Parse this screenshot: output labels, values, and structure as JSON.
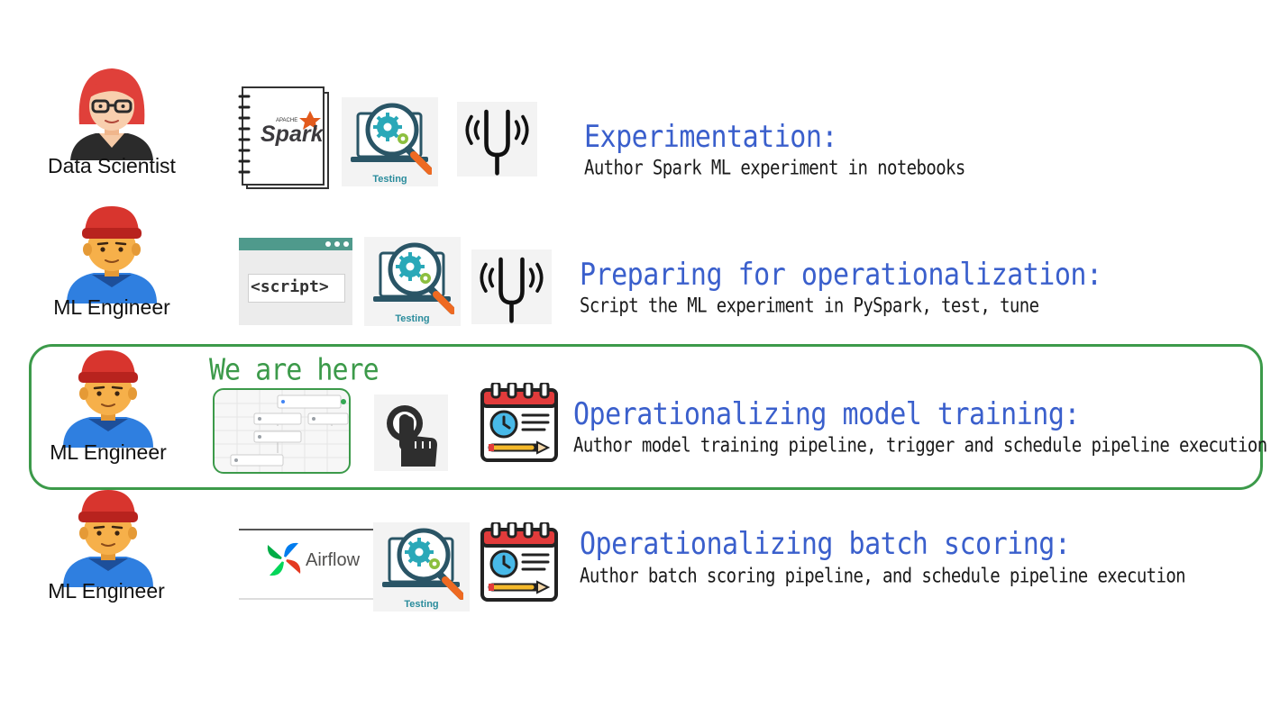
{
  "rows": [
    {
      "role": "Data Scientist",
      "title": "Experimentation:",
      "description": "Author Spark ML experiment in notebooks",
      "icons": [
        "spark-notebook-icon",
        "testing-icon",
        "tuning-fork-icon"
      ]
    },
    {
      "role": "ML Engineer",
      "title": "Preparing for operationalization:",
      "description": "Script the ML experiment in PySpark, test, tune",
      "icons": [
        "script-window-icon",
        "testing-icon",
        "tuning-fork-icon"
      ]
    },
    {
      "role": "ML Engineer",
      "title": "Operationalizing model training:",
      "description": "Author model training pipeline, trigger and schedule pipeline execution",
      "icons": [
        "pipeline-graph-icon",
        "tap-trigger-icon",
        "calendar-schedule-icon"
      ]
    },
    {
      "role": "ML Engineer",
      "title": "Operationalizing batch scoring:",
      "description": "Author batch scoring pipeline, and schedule pipeline execution",
      "icons": [
        "airflow-logo-icon",
        "testing-icon",
        "calendar-schedule-icon"
      ]
    }
  ],
  "highlight_label": "We are here",
  "icon_text": {
    "spark_small": "APACHE",
    "spark": "Spark",
    "script": "<script>",
    "testing": "Testing",
    "airflow": "Airflow"
  },
  "colors": {
    "title_blue": "#3a5fcc",
    "highlight_green": "#3c9a4a",
    "hat_red": "#d8352e",
    "skin": "#f6b04a",
    "shirt_blue": "#2f7fe0"
  }
}
